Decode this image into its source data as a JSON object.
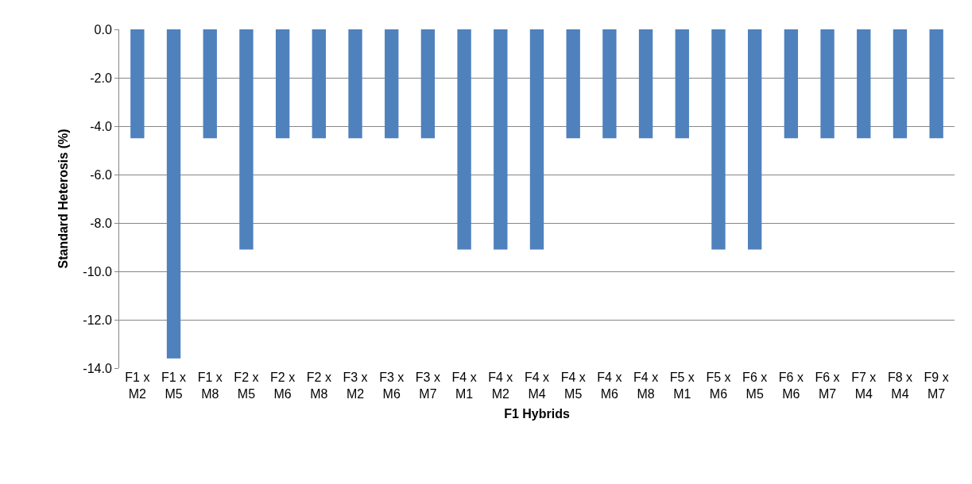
{
  "chart_data": {
    "type": "bar",
    "xlabel": "F1 Hybrids",
    "ylabel": "Standard Heterosis (%)",
    "categories": [
      "F1 x M2",
      "F1 x M5",
      "F1 x M8",
      "F2 x M5",
      "F2 x M6",
      "F2 x M8",
      "F3 x M2",
      "F3 x M6",
      "F3 x M7",
      "F4 x M1",
      "F4 x M2",
      "F4 x M4",
      "F4 x M5",
      "F4 x M6",
      "F4 x M8",
      "F5 x M1",
      "F5 x M6",
      "F6 x M5",
      "F6 x M6",
      "F6 x M7",
      "F7 x M4",
      "F8 x M4",
      "F9 x M7"
    ],
    "values": [
      -4.5,
      -13.6,
      -4.5,
      -9.1,
      -4.5,
      -4.5,
      -4.5,
      -4.5,
      -4.5,
      -9.1,
      -9.1,
      -9.1,
      -4.5,
      -4.5,
      -4.5,
      -4.5,
      -9.1,
      -9.1,
      -4.5,
      -4.5,
      -4.5,
      -4.5,
      -4.5
    ],
    "color": "#4f81bd",
    "ylim": [
      -14,
      0
    ],
    "yticks": [
      {
        "value": -14,
        "label": "-14.0"
      },
      {
        "value": -12,
        "label": "-12.0"
      },
      {
        "value": -10,
        "label": "-10.0"
      },
      {
        "value": -8,
        "label": "-8.0"
      },
      {
        "value": -6,
        "label": "-6.0"
      },
      {
        "value": -4,
        "label": "-4.0"
      },
      {
        "value": -2,
        "label": "-2.0"
      },
      {
        "value": 0,
        "label": "0.0"
      }
    ],
    "grid": "y"
  }
}
